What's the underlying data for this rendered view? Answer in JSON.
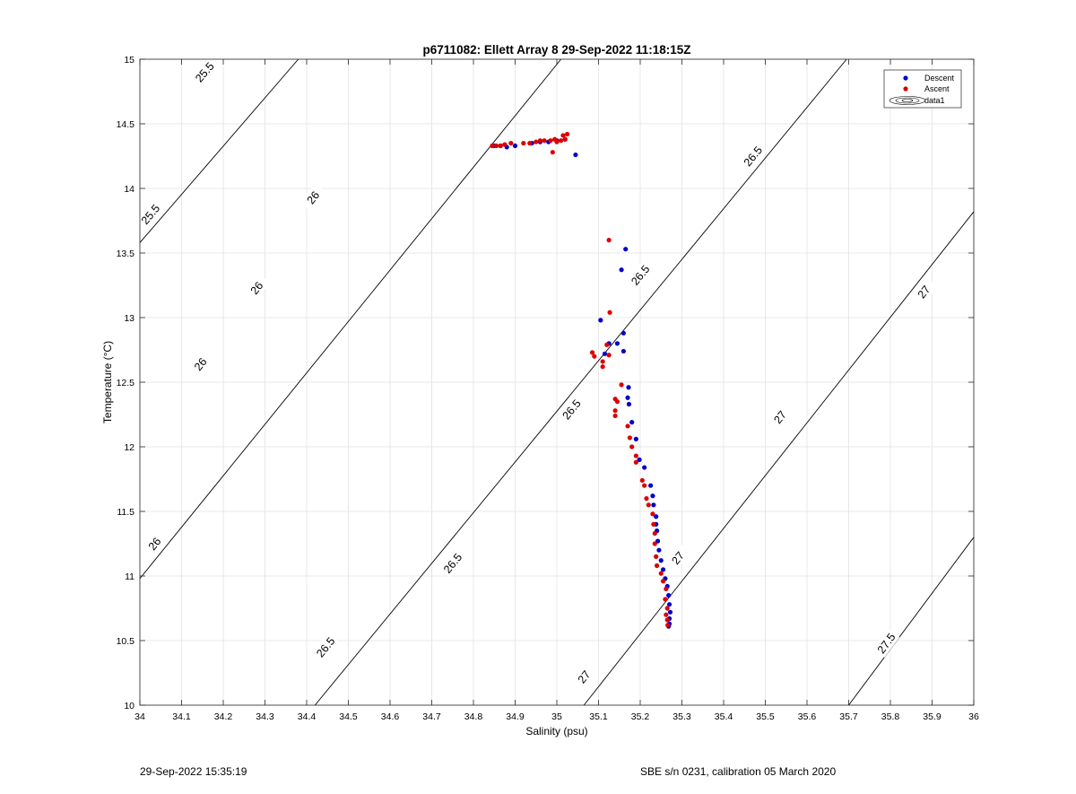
{
  "chart_data": {
    "type": "scatter",
    "title": "p6711082: Ellett Array 8 29-Sep-2022 11:18:15Z",
    "xlabel": "Salinity (psu)",
    "ylabel": "Temperature (°C)",
    "xlim": [
      34,
      36
    ],
    "ylim": [
      10,
      15
    ],
    "xticks": [
      34,
      34.1,
      34.2,
      34.3,
      34.4,
      34.5,
      34.6,
      34.7,
      34.8,
      34.9,
      35,
      35.1,
      35.2,
      35.3,
      35.4,
      35.5,
      35.6,
      35.7,
      35.8,
      35.9,
      36
    ],
    "xtick_labels": [
      "34",
      "34.1",
      "34.2",
      "34.3",
      "34.4",
      "34.5",
      "34.6",
      "34.7",
      "34.8",
      "34.9",
      "35",
      "35.1",
      "35.2",
      "35.3",
      "35.4",
      "35.5",
      "35.6",
      "35.7",
      "35.8",
      "35.9",
      "36"
    ],
    "yticks": [
      10,
      10.5,
      11,
      11.5,
      12,
      12.5,
      13,
      13.5,
      14,
      14.5,
      15
    ],
    "ytick_labels": [
      "10",
      "10.5",
      "11",
      "11.5",
      "12",
      "12.5",
      "13",
      "13.5",
      "14",
      "14.5",
      "15"
    ],
    "grid": true,
    "legend_position": "top-right",
    "legend": [
      "Descent",
      "Ascent",
      "data1"
    ],
    "series": [
      {
        "name": "Descent",
        "color": "#0000cc",
        "points": [
          [
            35.045,
            14.26
          ],
          [
            35.02,
            14.38
          ],
          [
            35.0,
            14.37
          ],
          [
            34.98,
            14.36
          ],
          [
            34.96,
            14.36
          ],
          [
            34.94,
            14.35
          ],
          [
            34.9,
            14.33
          ],
          [
            34.88,
            14.32
          ],
          [
            34.865,
            14.33
          ],
          [
            34.85,
            14.33
          ],
          [
            35.165,
            13.53
          ],
          [
            35.155,
            13.37
          ],
          [
            35.105,
            12.98
          ],
          [
            35.16,
            12.88
          ],
          [
            35.145,
            12.8
          ],
          [
            35.125,
            12.8
          ],
          [
            35.115,
            12.72
          ],
          [
            35.16,
            12.74
          ],
          [
            35.172,
            12.46
          ],
          [
            35.17,
            12.38
          ],
          [
            35.173,
            12.33
          ],
          [
            35.18,
            12.19
          ],
          [
            35.19,
            12.06
          ],
          [
            35.198,
            11.9
          ],
          [
            35.21,
            11.84
          ],
          [
            35.225,
            11.7
          ],
          [
            35.23,
            11.62
          ],
          [
            35.232,
            11.55
          ],
          [
            35.238,
            11.46
          ],
          [
            35.238,
            11.4
          ],
          [
            35.24,
            11.35
          ],
          [
            35.242,
            11.27
          ],
          [
            35.245,
            11.2
          ],
          [
            35.25,
            11.12
          ],
          [
            35.255,
            11.05
          ],
          [
            35.26,
            10.98
          ],
          [
            35.265,
            10.92
          ],
          [
            35.268,
            10.85
          ],
          [
            35.27,
            10.78
          ],
          [
            35.272,
            10.72
          ],
          [
            35.27,
            10.67
          ],
          [
            35.27,
            10.63
          ],
          [
            35.268,
            10.61
          ]
        ]
      },
      {
        "name": "Ascent",
        "color": "#dd0000",
        "points": [
          [
            35.025,
            14.42
          ],
          [
            35.015,
            14.41
          ],
          [
            35.02,
            14.38
          ],
          [
            35.01,
            14.37
          ],
          [
            35.0,
            14.36
          ],
          [
            34.995,
            14.38
          ],
          [
            34.985,
            14.37
          ],
          [
            34.97,
            14.37
          ],
          [
            34.96,
            14.37
          ],
          [
            34.95,
            14.36
          ],
          [
            34.935,
            14.35
          ],
          [
            34.99,
            14.28
          ],
          [
            34.92,
            14.35
          ],
          [
            34.89,
            14.35
          ],
          [
            34.875,
            14.34
          ],
          [
            34.865,
            14.33
          ],
          [
            34.855,
            14.33
          ],
          [
            34.845,
            14.33
          ],
          [
            35.125,
            13.6
          ],
          [
            35.127,
            13.04
          ],
          [
            35.085,
            12.73
          ],
          [
            35.09,
            12.7
          ],
          [
            35.12,
            12.79
          ],
          [
            35.125,
            12.71
          ],
          [
            35.11,
            12.66
          ],
          [
            35.11,
            12.62
          ],
          [
            35.155,
            12.48
          ],
          [
            35.14,
            12.37
          ],
          [
            35.145,
            12.35
          ],
          [
            35.14,
            12.28
          ],
          [
            35.14,
            12.24
          ],
          [
            35.17,
            12.16
          ],
          [
            35.175,
            12.07
          ],
          [
            35.18,
            12.0
          ],
          [
            35.19,
            11.93
          ],
          [
            35.19,
            11.88
          ],
          [
            35.205,
            11.74
          ],
          [
            35.21,
            11.7
          ],
          [
            35.215,
            11.6
          ],
          [
            35.22,
            11.55
          ],
          [
            35.23,
            11.48
          ],
          [
            35.232,
            11.4
          ],
          [
            35.235,
            11.33
          ],
          [
            35.235,
            11.25
          ],
          [
            35.238,
            11.15
          ],
          [
            35.24,
            11.08
          ],
          [
            35.25,
            11.02
          ],
          [
            35.255,
            10.96
          ],
          [
            35.262,
            10.9
          ],
          [
            35.26,
            10.82
          ],
          [
            35.265,
            10.75
          ],
          [
            35.262,
            10.7
          ],
          [
            35.265,
            10.66
          ],
          [
            35.266,
            10.62
          ]
        ]
      }
    ],
    "contours": {
      "color": "#000000",
      "lines": [
        {
          "label": "25.5",
          "start": [
            34.0,
            13.58
          ],
          "end": [
            34.38,
            15.0
          ],
          "label_positions": [
            [
              34.155,
              14.9
            ],
            [
              34.025,
              13.8
            ]
          ]
        },
        {
          "label": "26",
          "start": [
            34.0,
            10.98
          ],
          "end": [
            35.01,
            15.0
          ],
          "label_positions": [
            [
              34.28,
              13.23
            ],
            [
              34.145,
              12.64
            ],
            [
              34.035,
              11.25
            ],
            [
              34.415,
              13.93
            ]
          ]
        },
        {
          "label": "26.5",
          "start": [
            34.42,
            10.0
          ],
          "end": [
            35.695,
            15.0
          ],
          "label_positions": [
            [
              35.47,
              14.25
            ],
            [
              35.2,
              13.33
            ],
            [
              35.035,
              12.29
            ],
            [
              34.75,
              11.1
            ],
            [
              34.445,
              10.45
            ]
          ]
        },
        {
          "label": "27",
          "start": [
            35.065,
            10.0
          ],
          "end": [
            36.0,
            13.82
          ],
          "label_positions": [
            [
              35.88,
              13.2
            ],
            [
              35.535,
              12.23
            ],
            [
              35.29,
              11.14
            ],
            [
              35.065,
              10.22
            ]
          ]
        },
        {
          "label": "27.5",
          "start": [
            35.7,
            10.0
          ],
          "end": [
            36.0,
            11.3
          ],
          "label_positions": [
            [
              35.79,
              10.48
            ]
          ]
        }
      ]
    }
  },
  "footer": {
    "left": "29-Sep-2022 15:35:19",
    "right": "SBE s/n 0231, calibration 05 March 2020"
  }
}
